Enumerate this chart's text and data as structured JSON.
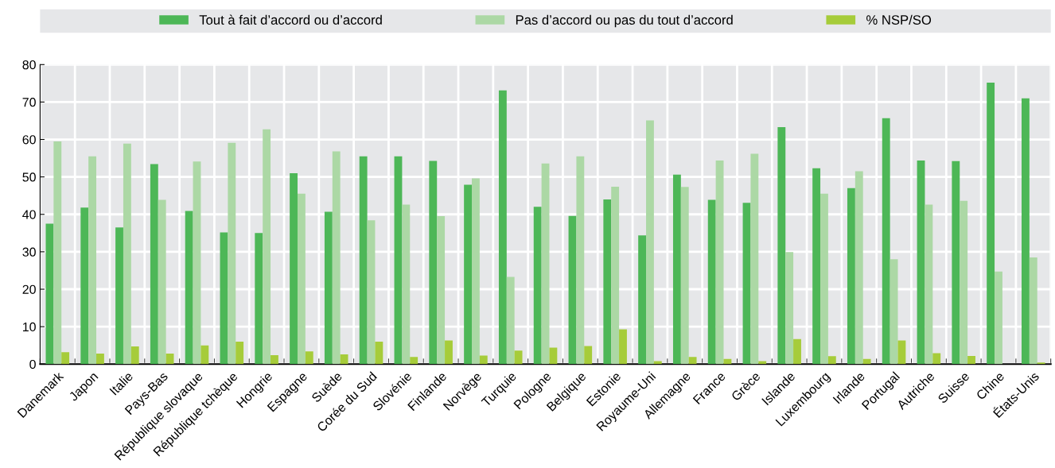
{
  "chart_data": {
    "type": "bar",
    "categories": [
      "Danemark",
      "Japon",
      "Italie",
      "Pays-Bas",
      "République slovaque",
      "République tchèque",
      "Hongrie",
      "Espagne",
      "Suède",
      "Corée du Sud",
      "Slovénie",
      "Finlande",
      "Norvège",
      "Turquie",
      "Pologne",
      "Belgique",
      "Estonie",
      "Royaume-Uni",
      "Allemagne",
      "France",
      "Grèce",
      "Islande",
      "Luxembourg",
      "Irlande",
      "Portugal",
      "Autriche",
      "Suisse",
      "Chine",
      "États-Unis"
    ],
    "series": [
      {
        "name": "Tout à fait d’accord ou d’accord",
        "color": "#4db757",
        "values": [
          37.5,
          41.8,
          36.5,
          53.4,
          40.9,
          35.2,
          35,
          51,
          40.7,
          55.5,
          55.5,
          54.3,
          47.9,
          73.1,
          42,
          39.6,
          44,
          34.4,
          50.6,
          43.9,
          43.1,
          63.3,
          52.3,
          47,
          65.7,
          54.4,
          54.2,
          75.2,
          71
        ]
      },
      {
        "name": "Pas d’accord ou pas du tout d’accord",
        "color": "#acd8a5",
        "values": [
          59.5,
          55.5,
          58.9,
          43.9,
          54.1,
          59.1,
          62.7,
          45.5,
          56.8,
          38.4,
          42.6,
          39.5,
          49.6,
          23.3,
          53.6,
          55.5,
          47.4,
          65.1,
          47.3,
          54.4,
          56.2,
          29.9,
          45.5,
          51.5,
          28,
          42.6,
          43.6,
          24.7,
          28.5
        ]
      },
      {
        "name": "% NSP/SO",
        "color": "#a6cc3a",
        "values": [
          3.2,
          2.8,
          4.7,
          2.8,
          5,
          6,
          2.4,
          3.4,
          2.6,
          6,
          1.9,
          6.3,
          2.3,
          3.6,
          4.4,
          4.8,
          9.3,
          0.8,
          1.9,
          1.4,
          0.8,
          6.7,
          2.1,
          1.4,
          6.3,
          2.9,
          2.2,
          null,
          0.4
        ]
      }
    ],
    "ylim": [
      0,
      80
    ],
    "yticks": [
      0,
      10,
      20,
      30,
      40,
      50,
      60,
      70,
      80
    ],
    "grid": true,
    "legend": "top"
  }
}
